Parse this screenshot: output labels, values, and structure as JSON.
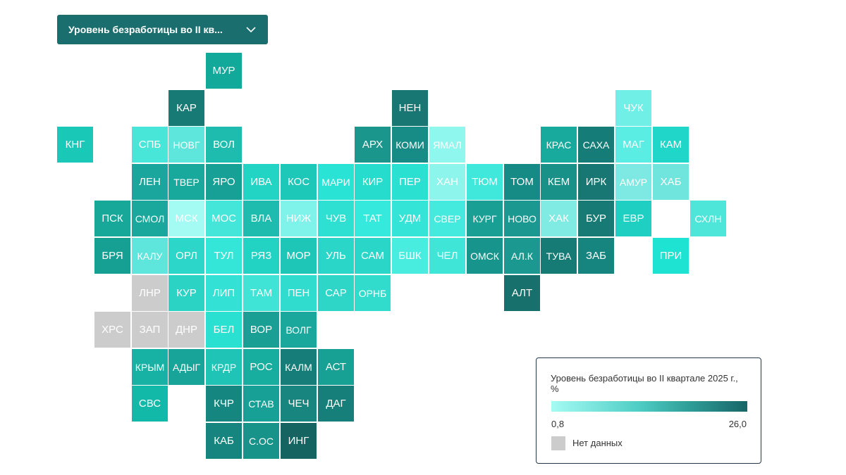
{
  "dropdown": {
    "label": "Уровень безработицы во II кв...",
    "icon": "chevron-down-icon"
  },
  "legend": {
    "title": "Уровень безработицы во II квартале 2025 г., %",
    "min_label": "0,8",
    "max_label": "26,0",
    "no_data_label": "Нет данных",
    "color_min": "#a4fbf4",
    "color_max": "#176567",
    "color_no_data": "#cccccc"
  },
  "tiles": [
    {
      "code": "МУР",
      "row": 0,
      "col": 4,
      "color": "#12a89a"
    },
    {
      "code": "КАР",
      "row": 1,
      "col": 3,
      "color": "#187a75"
    },
    {
      "code": "НЕН",
      "row": 1,
      "col": 9,
      "color": "#187773"
    },
    {
      "code": "ЧУК",
      "row": 1,
      "col": 15,
      "color": "#70efe7"
    },
    {
      "code": "КНГ",
      "row": 2,
      "col": 0,
      "color": "#1ac8b8"
    },
    {
      "code": "СПБ",
      "row": 2,
      "col": 2,
      "color": "#47e6d8"
    },
    {
      "code": "НОВГ",
      "row": 2,
      "col": 3,
      "color": "#5ee6dc"
    },
    {
      "code": "ВОЛ",
      "row": 2,
      "col": 4,
      "color": "#1dbcae"
    },
    {
      "code": "АРХ",
      "row": 2,
      "col": 8,
      "color": "#1a968c"
    },
    {
      "code": "КОМИ",
      "row": 2,
      "col": 9,
      "color": "#178b85"
    },
    {
      "code": "ЯМАЛ",
      "row": 2,
      "col": 10,
      "color": "#8ff7ee"
    },
    {
      "code": "КРАС",
      "row": 2,
      "col": 13,
      "color": "#18aa9c"
    },
    {
      "code": "САХА",
      "row": 2,
      "col": 14,
      "color": "#167c77"
    },
    {
      "code": "МАГ",
      "row": 2,
      "col": 15,
      "color": "#5aede4"
    },
    {
      "code": "КАМ",
      "row": 2,
      "col": 16,
      "color": "#1fd6c8"
    },
    {
      "code": "ЛЕН",
      "row": 3,
      "col": 2,
      "color": "#1aa69c"
    },
    {
      "code": "ТВЕР",
      "row": 3,
      "col": 3,
      "color": "#19a89c"
    },
    {
      "code": "ЯРО",
      "row": 3,
      "col": 4,
      "color": "#17a095"
    },
    {
      "code": "ИВА",
      "row": 3,
      "col": 5,
      "color": "#22d4c4"
    },
    {
      "code": "КОС",
      "row": 3,
      "col": 6,
      "color": "#1ec8b9"
    },
    {
      "code": "МАРИ",
      "row": 3,
      "col": 7,
      "color": "#29e4d4"
    },
    {
      "code": "КИР",
      "row": 3,
      "col": 8,
      "color": "#26dccd"
    },
    {
      "code": "ПЕР",
      "row": 3,
      "col": 9,
      "color": "#2ae0d1"
    },
    {
      "code": "ХАН",
      "row": 3,
      "col": 10,
      "color": "#8ef5ec"
    },
    {
      "code": "ТЮМ",
      "row": 3,
      "col": 11,
      "color": "#3fe8db"
    },
    {
      "code": "ТОМ",
      "row": 3,
      "col": 12,
      "color": "#168a84"
    },
    {
      "code": "КЕМ",
      "row": 3,
      "col": 13,
      "color": "#189188"
    },
    {
      "code": "ИРК",
      "row": 3,
      "col": 14,
      "color": "#187773"
    },
    {
      "code": "АМУР",
      "row": 3,
      "col": 15,
      "color": "#7de9e2"
    },
    {
      "code": "ХАБ",
      "row": 3,
      "col": 16,
      "color": "#6fe5dd"
    },
    {
      "code": "ПСК",
      "row": 4,
      "col": 1,
      "color": "#18a89a"
    },
    {
      "code": "СМОЛ",
      "row": 4,
      "col": 2,
      "color": "#1aa89c"
    },
    {
      "code": "МСК",
      "row": 4,
      "col": 3,
      "color": "#a4fbf4"
    },
    {
      "code": "МОС",
      "row": 4,
      "col": 4,
      "color": "#44e6d9"
    },
    {
      "code": "ВЛА",
      "row": 4,
      "col": 5,
      "color": "#1ebcae"
    },
    {
      "code": "НИЖ",
      "row": 4,
      "col": 6,
      "color": "#7ff3ea"
    },
    {
      "code": "ЧУВ",
      "row": 4,
      "col": 7,
      "color": "#2de0d1"
    },
    {
      "code": "ТАТ",
      "row": 4,
      "col": 8,
      "color": "#35eadd"
    },
    {
      "code": "УДМ",
      "row": 4,
      "col": 9,
      "color": "#34e4d6"
    },
    {
      "code": "СВЕР",
      "row": 4,
      "col": 10,
      "color": "#44eadd"
    },
    {
      "code": "КУРГ",
      "row": 4,
      "col": 11,
      "color": "#1a9f95"
    },
    {
      "code": "НОВО",
      "row": 4,
      "col": 12,
      "color": "#1b9990"
    },
    {
      "code": "ХАК",
      "row": 4,
      "col": 13,
      "color": "#80ebe2"
    },
    {
      "code": "БУР",
      "row": 4,
      "col": 14,
      "color": "#187a75"
    },
    {
      "code": "ЕВР",
      "row": 4,
      "col": 15,
      "color": "#1fd0c2"
    },
    {
      "code": "СХЛН",
      "row": 4,
      "col": 17,
      "color": "#4fe6da"
    },
    {
      "code": "БРЯ",
      "row": 5,
      "col": 1,
      "color": "#16a094"
    },
    {
      "code": "КАЛУ",
      "row": 5,
      "col": 2,
      "color": "#5ee6dc"
    },
    {
      "code": "ОРЛ",
      "row": 5,
      "col": 3,
      "color": "#2cd6c8"
    },
    {
      "code": "ТУЛ",
      "row": 5,
      "col": 4,
      "color": "#34e6d8"
    },
    {
      "code": "РЯЗ",
      "row": 5,
      "col": 5,
      "color": "#22d2c2"
    },
    {
      "code": "МОР",
      "row": 5,
      "col": 6,
      "color": "#1ec6b8"
    },
    {
      "code": "УЛЬ",
      "row": 5,
      "col": 7,
      "color": "#2ad6c8"
    },
    {
      "code": "САМ",
      "row": 5,
      "col": 8,
      "color": "#2ad6c8"
    },
    {
      "code": "БШК",
      "row": 5,
      "col": 9,
      "color": "#49ede0"
    },
    {
      "code": "ЧЕЛ",
      "row": 5,
      "col": 10,
      "color": "#3fe6d8"
    },
    {
      "code": "ОМСК",
      "row": 5,
      "col": 11,
      "color": "#17948b"
    },
    {
      "code": "АЛ.К",
      "row": 5,
      "col": 12,
      "color": "#1b9990"
    },
    {
      "code": "ТУВА",
      "row": 5,
      "col": 13,
      "color": "#167a75"
    },
    {
      "code": "ЗАБ",
      "row": 5,
      "col": 14,
      "color": "#17857f"
    },
    {
      "code": "ПРИ",
      "row": 5,
      "col": 16,
      "color": "#1ee2d2"
    },
    {
      "code": "ЛНР",
      "row": 6,
      "col": 2,
      "color": "#cccccc"
    },
    {
      "code": "КУР",
      "row": 6,
      "col": 3,
      "color": "#2bd3c5"
    },
    {
      "code": "ЛИП",
      "row": 6,
      "col": 4,
      "color": "#33e2d4"
    },
    {
      "code": "ТАМ",
      "row": 6,
      "col": 5,
      "color": "#40e4d7"
    },
    {
      "code": "ПЕН",
      "row": 6,
      "col": 6,
      "color": "#30dcce"
    },
    {
      "code": "САР",
      "row": 6,
      "col": 7,
      "color": "#2ed6c8"
    },
    {
      "code": "ОРНБ",
      "row": 6,
      "col": 8,
      "color": "#32dccd"
    },
    {
      "code": "АЛТ",
      "row": 6,
      "col": 12,
      "color": "#18706d"
    },
    {
      "code": "ХРС",
      "row": 7,
      "col": 1,
      "color": "#cccccc"
    },
    {
      "code": "ЗАП",
      "row": 7,
      "col": 2,
      "color": "#cccccc"
    },
    {
      "code": "ДНР",
      "row": 7,
      "col": 3,
      "color": "#cccccc"
    },
    {
      "code": "БЕЛ",
      "row": 7,
      "col": 4,
      "color": "#2ae0d1"
    },
    {
      "code": "ВОР",
      "row": 7,
      "col": 5,
      "color": "#1a9f95"
    },
    {
      "code": "ВОЛГ",
      "row": 7,
      "col": 6,
      "color": "#1aa89c"
    },
    {
      "code": "КРЫМ",
      "row": 8,
      "col": 2,
      "color": "#18b2a4"
    },
    {
      "code": "АДЫГ",
      "row": 8,
      "col": 3,
      "color": "#18a498"
    },
    {
      "code": "КРДР",
      "row": 8,
      "col": 4,
      "color": "#1fc4b6"
    },
    {
      "code": "РОС",
      "row": 8,
      "col": 5,
      "color": "#18ae9f"
    },
    {
      "code": "КАЛМ",
      "row": 8,
      "col": 6,
      "color": "#177d78"
    },
    {
      "code": "АСТ",
      "row": 8,
      "col": 7,
      "color": "#17a094"
    },
    {
      "code": "СВС",
      "row": 9,
      "col": 2,
      "color": "#12b9a9"
    },
    {
      "code": "КЧР",
      "row": 9,
      "col": 4,
      "color": "#168780"
    },
    {
      "code": "СТАВ",
      "row": 9,
      "col": 5,
      "color": "#17a095"
    },
    {
      "code": "ЧЕЧ",
      "row": 9,
      "col": 6,
      "color": "#18857f"
    },
    {
      "code": "ДАГ",
      "row": 9,
      "col": 7,
      "color": "#177f79"
    },
    {
      "code": "КАБ",
      "row": 10,
      "col": 4,
      "color": "#17857f"
    },
    {
      "code": "С.ОС",
      "row": 10,
      "col": 5,
      "color": "#18938a"
    },
    {
      "code": "ИНГ",
      "row": 10,
      "col": 6,
      "color": "#156462"
    }
  ]
}
